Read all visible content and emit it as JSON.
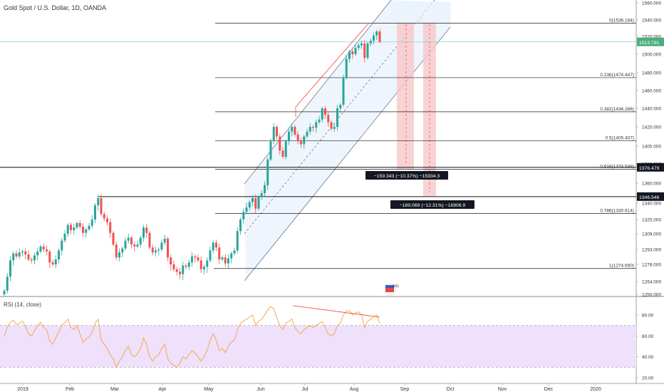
{
  "symbol_title": "Gold Spot / U.S. Dollar, 1D, OANDA",
  "rsi_title": "RSI (14, close)",
  "badge_label": "431",
  "colors": {
    "up": "#26a69a",
    "down": "#ef5350",
    "fib": "#1f1f1f",
    "channel": "#5b6b80",
    "rsi_line": "#f2a33a",
    "rsi_band": "#efe0fb",
    "price_tag": "#4cae7c",
    "measure_red": "#f8c7c9",
    "divergence": "#ef5350",
    "h_lines": "#b2ebf2"
  },
  "chart_data": [
    {
      "type": "candlestick",
      "title": "Gold Spot / U.S. Dollar, 1D, OANDA",
      "x_ticks": [
        "2019",
        "Feb",
        "Mar",
        "Apr",
        "May",
        "Jun",
        "Jul",
        "Aug",
        "Sep",
        "Oct",
        "Nov",
        "Dec",
        "2020"
      ],
      "y_ticks": [
        1250,
        1264,
        1278,
        1293,
        1309,
        1325,
        1340,
        1360,
        1380,
        1400,
        1420,
        1440,
        1460,
        1480,
        1500,
        1520,
        1540,
        1560
      ],
      "ylim": [
        1250,
        1560
      ],
      "last_price": "1513.791",
      "fib_levels": [
        {
          "label": "0(1536.164)",
          "value": 1536.164
        },
        {
          "label": "0.236(1474.447)",
          "value": 1474.447
        },
        {
          "label": "0.382(1436.266)",
          "value": 1436.266
        },
        {
          "label": "0.5(1405.407)",
          "value": 1405.407
        },
        {
          "label": "0.618(1374.548)",
          "value": 1374.548
        },
        {
          "label": "0.786(1330.614)",
          "value": 1330.614
        },
        {
          "label": "1(1274.650)",
          "value": 1274.65
        }
      ],
      "horizontal_lines": [
        {
          "label": "1376.479",
          "value": 1376.479
        },
        {
          "label": "1346.546",
          "value": 1346.546
        }
      ],
      "measurements": [
        {
          "label": "−159.343 (−10.37%) −15934.3",
          "from": 1536,
          "to": 1376.479
        },
        {
          "label": "−189.069 (−12.31%) −18906.9",
          "from": 1536,
          "to": 1346.546
        }
      ],
      "candles_approx_closes": [
        1254,
        1268,
        1282,
        1289,
        1286,
        1290,
        1291,
        1288,
        1283,
        1282,
        1287,
        1291,
        1296,
        1293,
        1291,
        1280,
        1278,
        1283,
        1292,
        1302,
        1309,
        1319,
        1313,
        1316,
        1321,
        1317,
        1310,
        1314,
        1318,
        1325,
        1338,
        1345,
        1330,
        1326,
        1322,
        1310,
        1298,
        1285,
        1290,
        1294,
        1302,
        1305,
        1298,
        1296,
        1298,
        1305,
        1316,
        1310,
        1295,
        1290,
        1292,
        1293,
        1300,
        1304,
        1285,
        1278,
        1274,
        1272,
        1270,
        1277,
        1276,
        1280,
        1286,
        1285,
        1282,
        1274,
        1276,
        1282,
        1292,
        1300,
        1295,
        1283,
        1285,
        1279,
        1284,
        1289,
        1292,
        1312,
        1325,
        1332,
        1336,
        1341,
        1345,
        1335,
        1346,
        1350,
        1358,
        1385,
        1405,
        1420,
        1410,
        1395,
        1388,
        1405,
        1415,
        1420,
        1412,
        1405,
        1402,
        1410,
        1415,
        1420,
        1419,
        1425,
        1428,
        1440,
        1433,
        1425,
        1418,
        1420,
        1440,
        1444,
        1475,
        1495,
        1503,
        1500,
        1507,
        1510,
        1512,
        1496,
        1512,
        1515,
        1521,
        1526,
        1514
      ],
      "rsi": {
        "name": "RSI (14, close)",
        "y_ticks": [
          20,
          40,
          60,
          80
        ],
        "upper_band": 70,
        "lower_band": 30,
        "values_approx": [
          60,
          68,
          73,
          75,
          71,
          72,
          74,
          69,
          62,
          60,
          65,
          70,
          73,
          68,
          66,
          55,
          52,
          58,
          64,
          70,
          73,
          76,
          68,
          66,
          70,
          62,
          54,
          57,
          59,
          63,
          72,
          76,
          56,
          52,
          48,
          42,
          38,
          30,
          36,
          40,
          46,
          50,
          42,
          40,
          43,
          48,
          58,
          52,
          40,
          36,
          40,
          42,
          48,
          52,
          38,
          34,
          32,
          30,
          34,
          40,
          38,
          42,
          46,
          44,
          40,
          36,
          40,
          46,
          56,
          62,
          56,
          46,
          48,
          44,
          50,
          54,
          56,
          66,
          72,
          74,
          76,
          78,
          80,
          70,
          74,
          76,
          80,
          85,
          88,
          86,
          78,
          70,
          66,
          72,
          74,
          76,
          68,
          64,
          62,
          66,
          68,
          70,
          68,
          70,
          72,
          74,
          68,
          62,
          60,
          62,
          70,
          72,
          80,
          84,
          84,
          80,
          82,
          83,
          80,
          68,
          74,
          76,
          78,
          80,
          72
        ]
      }
    }
  ]
}
